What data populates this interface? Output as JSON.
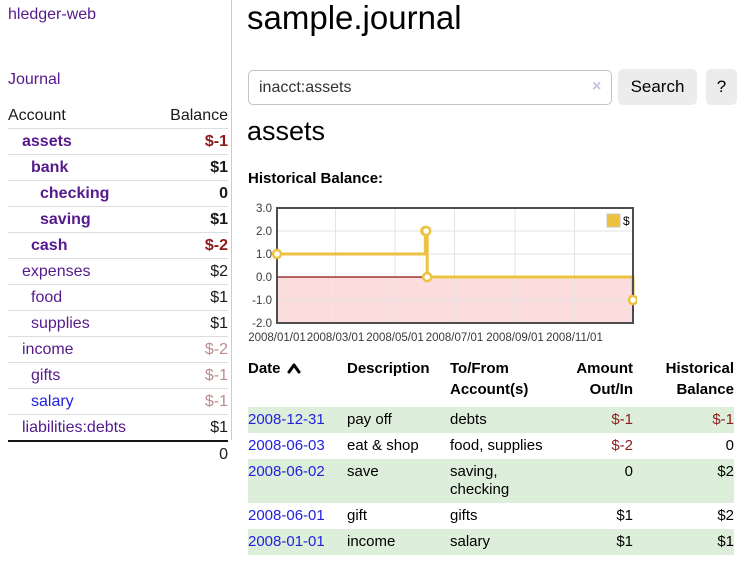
{
  "palette": {
    "link_purple": "#551a8b",
    "link_blue": "#2222dd",
    "negative_dark": "#8b1a1a",
    "negative_muted": "#bd8d8d",
    "register_row_green": "#ddeeda",
    "chart_series_yellow": "#edc240",
    "chart_negative_fill": "#fbdddd",
    "chart_zero_line": "#8b1010",
    "button_gray": "#ececec"
  },
  "sidebar": {
    "app_title": "hledger-web",
    "journal_label": "Journal",
    "table": {
      "account_header": "Account",
      "balance_header": "Balance",
      "rows": [
        {
          "name": "assets",
          "depth": 1,
          "bold": true,
          "visited": true,
          "balance": "$-1"
        },
        {
          "name": "bank",
          "depth": 2,
          "bold": true,
          "visited": true,
          "balance": "$1"
        },
        {
          "name": "checking",
          "depth": 3,
          "bold": true,
          "visited": true,
          "balance": "0"
        },
        {
          "name": "saving",
          "depth": 3,
          "bold": true,
          "visited": true,
          "balance": "$1"
        },
        {
          "name": "cash",
          "depth": 2,
          "bold": true,
          "visited": true,
          "balance": "$-2"
        },
        {
          "name": "expenses",
          "depth": 1,
          "bold": false,
          "visited": true,
          "balance": "$2"
        },
        {
          "name": "food",
          "depth": 2,
          "bold": false,
          "visited": true,
          "balance": "$1"
        },
        {
          "name": "supplies",
          "depth": 2,
          "bold": false,
          "visited": true,
          "balance": "$1"
        },
        {
          "name": "income",
          "depth": 1,
          "bold": false,
          "visited": true,
          "balance": "$-2"
        },
        {
          "name": "gifts",
          "depth": 2,
          "bold": false,
          "visited": true,
          "balance": "$-1"
        },
        {
          "name": "salary",
          "depth": 2,
          "bold": false,
          "visited": false,
          "balance": "$-1"
        },
        {
          "name": "liabilities:debts",
          "depth": 1,
          "bold": false,
          "visited": true,
          "balance": "$1"
        }
      ],
      "total": "0"
    }
  },
  "main": {
    "title": "sample.journal",
    "search": {
      "value": "inacct:assets",
      "clear_icon": "×",
      "button_label": "Search",
      "help_label": "?"
    },
    "account_heading": "assets",
    "section_label": "Historical Balance:"
  },
  "chart_data": {
    "type": "line",
    "step": true,
    "title": "Historical Balance:",
    "series": [
      {
        "name": "$",
        "color": "#edc240",
        "points": [
          [
            "2008-01-01",
            1
          ],
          [
            "2008-06-01",
            2
          ],
          [
            "2008-06-02",
            2
          ],
          [
            "2008-06-03",
            0
          ],
          [
            "2008-12-31",
            -1
          ]
        ]
      }
    ],
    "x_range": [
      "2008-01-01",
      "2008-12-31"
    ],
    "x_ticks": [
      "2008/01/01",
      "2008/03/01",
      "2008/05/01",
      "2008/07/01",
      "2008/09/01",
      "2008/11/01"
    ],
    "y_ticks": [
      3.0,
      2.0,
      1.0,
      0.0,
      -1.0,
      -2.0
    ],
    "y_tick_labels": [
      "3.0",
      "2.0",
      "1.0",
      "0.0",
      "-1.0",
      "-2.0"
    ],
    "ylim": [
      -2,
      3
    ],
    "grid": true,
    "legend_position": "top-right",
    "negative_region_shaded": true
  },
  "register": {
    "headers": {
      "date": "Date",
      "sort_icon": "chevron-up-icon",
      "description": "Description",
      "account_lines": [
        "To/From",
        "Account(s)"
      ],
      "amount_lines": [
        "Amount",
        "Out/In"
      ],
      "balance_lines": [
        "Historical",
        "Balance"
      ]
    },
    "rows": [
      {
        "date": "2008-12-31",
        "description": "pay off",
        "accounts": "debts",
        "amount": "$-1",
        "balance": "$-1"
      },
      {
        "date": "2008-06-03",
        "description": "eat & shop",
        "accounts": "food, supplies",
        "amount": "$-2",
        "balance": "0"
      },
      {
        "date": "2008-06-02",
        "description": "save",
        "accounts": "saving, checking",
        "amount": "0",
        "balance": "$2"
      },
      {
        "date": "2008-06-01",
        "description": "gift",
        "accounts": "gifts",
        "amount": "$1",
        "balance": "$2"
      },
      {
        "date": "2008-01-01",
        "description": "income",
        "accounts": "salary",
        "amount": "$1",
        "balance": "$1"
      }
    ]
  }
}
